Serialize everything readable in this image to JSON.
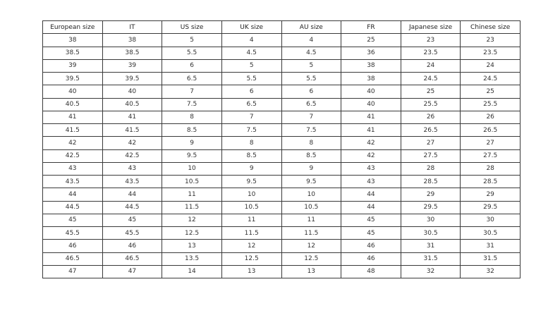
{
  "table": {
    "headers": [
      "European size",
      "IT",
      "US size",
      "UK size",
      "AU size",
      "FR",
      "Japanese size",
      "Chinese size"
    ],
    "rows": [
      [
        "38",
        "38",
        "5",
        "4",
        "4",
        "25",
        "23",
        "23"
      ],
      [
        "38.5",
        "38.5",
        "5.5",
        "4.5",
        "4.5",
        "36",
        "23.5",
        "23.5"
      ],
      [
        "39",
        "39",
        "6",
        "5",
        "5",
        "38",
        "24",
        "24"
      ],
      [
        "39.5",
        "39.5",
        "6.5",
        "5.5",
        "5.5",
        "38",
        "24.5",
        "24.5"
      ],
      [
        "40",
        "40",
        "7",
        "6",
        "6",
        "40",
        "25",
        "25"
      ],
      [
        "40.5",
        "40.5",
        "7.5",
        "6.5",
        "6.5",
        "40",
        "25.5",
        "25.5"
      ],
      [
        "41",
        "41",
        "8",
        "7",
        "7",
        "41",
        "26",
        "26"
      ],
      [
        "41.5",
        "41.5",
        "8.5",
        "7.5",
        "7.5",
        "41",
        "26.5",
        "26.5"
      ],
      [
        "42",
        "42",
        "9",
        "8",
        "8",
        "42",
        "27",
        "27"
      ],
      [
        "42.5",
        "42.5",
        "9.5",
        "8.5",
        "8.5",
        "42",
        "27.5",
        "27.5"
      ],
      [
        "43",
        "43",
        "10",
        "9",
        "9",
        "43",
        "28",
        "28"
      ],
      [
        "43.5",
        "43.5",
        "10.5",
        "9.5",
        "9.5",
        "43",
        "28.5",
        "28.5"
      ],
      [
        "44",
        "44",
        "11",
        "10",
        "10",
        "44",
        "29",
        "29"
      ],
      [
        "44.5",
        "44.5",
        "11.5",
        "10.5",
        "10.5",
        "44",
        "29.5",
        "29.5"
      ],
      [
        "45",
        "45",
        "12",
        "11",
        "11",
        "45",
        "30",
        "30"
      ],
      [
        "45.5",
        "45.5",
        "12.5",
        "11.5",
        "11.5",
        "45",
        "30.5",
        "30.5"
      ],
      [
        "46",
        "46",
        "13",
        "12",
        "12",
        "46",
        "31",
        "31"
      ],
      [
        "46.5",
        "46.5",
        "13.5",
        "12.5",
        "12.5",
        "46",
        "31.5",
        "31.5"
      ],
      [
        "47",
        "47",
        "14",
        "13",
        "13",
        "48",
        "32",
        "32"
      ]
    ]
  }
}
